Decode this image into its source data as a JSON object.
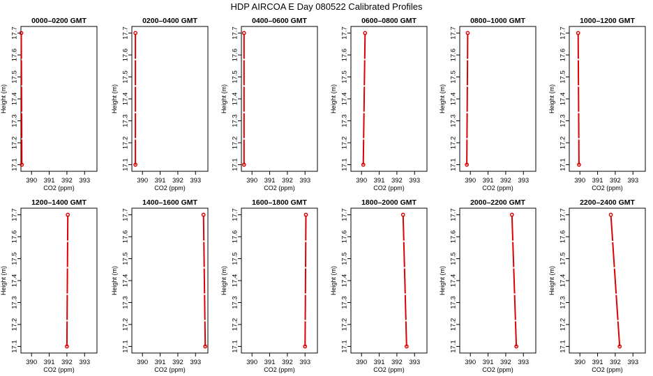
{
  "title": "HDP  AIRCOA E  Day 080522  Calibrated Profiles",
  "colors": {
    "series": "#dd0000",
    "axis": "#000000",
    "background": "#ffffff"
  },
  "chart_data": {
    "type": "line",
    "layout": "small-multiples",
    "rows": 2,
    "cols": 6,
    "xlabel": "CO2 (ppm)",
    "ylabel": "Height (m)",
    "xlim": [
      389.4,
      393.7
    ],
    "ylim": [
      17.07,
      17.73
    ],
    "xticks": [
      390,
      391,
      392,
      393
    ],
    "yticks": [
      17.1,
      17.2,
      17.3,
      17.4,
      17.5,
      17.6,
      17.7
    ],
    "grid": false,
    "legend": "none",
    "panels": [
      {
        "title": "0000–0200 GMT",
        "points": [
          {
            "x": 389.45,
            "y": 17.1
          },
          {
            "x": 389.42,
            "y": 17.7
          }
        ]
      },
      {
        "title": "0200–0400 GMT",
        "points": [
          {
            "x": 389.6,
            "y": 17.1
          },
          {
            "x": 389.6,
            "y": 17.7
          }
        ]
      },
      {
        "title": "0400–0600 GMT",
        "points": [
          {
            "x": 389.55,
            "y": 17.1
          },
          {
            "x": 389.55,
            "y": 17.7
          }
        ]
      },
      {
        "title": "0600–0800 GMT",
        "points": [
          {
            "x": 390.1,
            "y": 17.1
          },
          {
            "x": 390.2,
            "y": 17.7
          }
        ]
      },
      {
        "title": "0800–1000 GMT",
        "points": [
          {
            "x": 389.8,
            "y": 17.1
          },
          {
            "x": 389.85,
            "y": 17.7
          }
        ]
      },
      {
        "title": "1000–1200 GMT",
        "points": [
          {
            "x": 389.95,
            "y": 17.1
          },
          {
            "x": 389.9,
            "y": 17.7
          }
        ]
      },
      {
        "title": "1200–1400 GMT",
        "points": [
          {
            "x": 392.0,
            "y": 17.1
          },
          {
            "x": 392.05,
            "y": 17.7
          }
        ]
      },
      {
        "title": "1400–1600 GMT",
        "points": [
          {
            "x": 393.55,
            "y": 17.1
          },
          {
            "x": 393.45,
            "y": 17.7
          }
        ]
      },
      {
        "title": "1600–1800 GMT",
        "points": [
          {
            "x": 393.0,
            "y": 17.1
          },
          {
            "x": 393.05,
            "y": 17.7
          }
        ]
      },
      {
        "title": "1800–2000 GMT",
        "points": [
          {
            "x": 392.55,
            "y": 17.1
          },
          {
            "x": 392.35,
            "y": 17.7
          }
        ]
      },
      {
        "title": "2000–2200 GMT",
        "points": [
          {
            "x": 392.6,
            "y": 17.1
          },
          {
            "x": 392.35,
            "y": 17.7
          }
        ]
      },
      {
        "title": "2200–2400 GMT",
        "points": [
          {
            "x": 392.25,
            "y": 17.1
          },
          {
            "x": 391.75,
            "y": 17.7
          }
        ]
      }
    ]
  }
}
